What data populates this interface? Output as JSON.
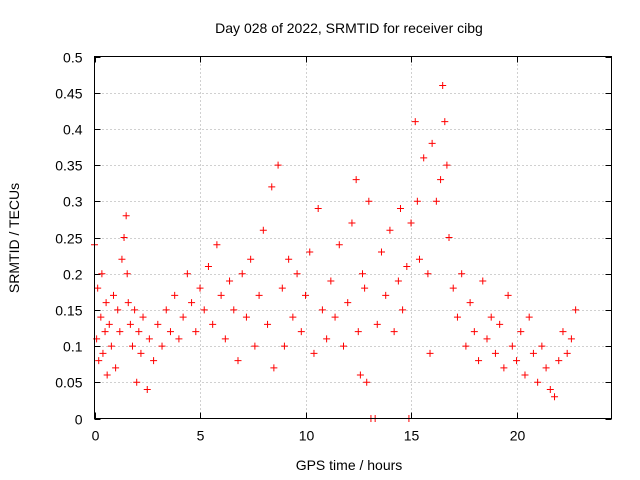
{
  "chart_data": {
    "type": "scatter",
    "title": "Day 028 of 2022, SRMTID for receiver cibg",
    "xlabel": "GPS time / hours",
    "ylabel": "SRMTID / TECUs",
    "xlim": [
      0,
      24.5
    ],
    "ylim": [
      0,
      0.5
    ],
    "xticks": [
      0,
      5,
      10,
      15,
      20
    ],
    "xtick_labels": [
      "0",
      "5",
      "10",
      "15",
      "20"
    ],
    "yticks": [
      0,
      0.05,
      0.1,
      0.15,
      0.2,
      0.25,
      0.3,
      0.35,
      0.4,
      0.45,
      0.5
    ],
    "ytick_labels": [
      "0",
      "0.05",
      "0.1",
      "0.15",
      "0.2",
      "0.25",
      "0.3",
      "0.35",
      "0.4",
      "0.45",
      "0.5"
    ],
    "grid": true,
    "marker": "plus",
    "color": "#ff0000",
    "series": [
      {
        "name": "SRMTID",
        "points": [
          [
            0.0,
            0.24
          ],
          [
            0.1,
            0.11
          ],
          [
            0.15,
            0.18
          ],
          [
            0.2,
            0.08
          ],
          [
            0.3,
            0.14
          ],
          [
            0.35,
            0.2
          ],
          [
            0.4,
            0.09
          ],
          [
            0.5,
            0.12
          ],
          [
            0.55,
            0.16
          ],
          [
            0.6,
            0.06
          ],
          [
            0.7,
            0.13
          ],
          [
            0.8,
            0.1
          ],
          [
            0.9,
            0.17
          ],
          [
            1.0,
            0.07
          ],
          [
            1.1,
            0.15
          ],
          [
            1.2,
            0.12
          ],
          [
            1.3,
            0.22
          ],
          [
            1.4,
            0.25
          ],
          [
            1.5,
            0.28
          ],
          [
            1.55,
            0.2
          ],
          [
            1.6,
            0.16
          ],
          [
            1.7,
            0.13
          ],
          [
            1.8,
            0.1
          ],
          [
            1.9,
            0.15
          ],
          [
            2.0,
            0.05
          ],
          [
            2.1,
            0.12
          ],
          [
            2.2,
            0.09
          ],
          [
            2.3,
            0.14
          ],
          [
            2.5,
            0.04
          ],
          [
            2.6,
            0.11
          ],
          [
            2.8,
            0.08
          ],
          [
            3.0,
            0.13
          ],
          [
            3.2,
            0.1
          ],
          [
            3.4,
            0.15
          ],
          [
            3.6,
            0.12
          ],
          [
            3.8,
            0.17
          ],
          [
            4.0,
            0.11
          ],
          [
            4.2,
            0.14
          ],
          [
            4.4,
            0.2
          ],
          [
            4.6,
            0.16
          ],
          [
            4.8,
            0.12
          ],
          [
            5.0,
            0.18
          ],
          [
            5.2,
            0.15
          ],
          [
            5.4,
            0.21
          ],
          [
            5.6,
            0.13
          ],
          [
            5.8,
            0.24
          ],
          [
            6.0,
            0.17
          ],
          [
            6.2,
            0.11
          ],
          [
            6.4,
            0.19
          ],
          [
            6.6,
            0.15
          ],
          [
            6.8,
            0.08
          ],
          [
            7.0,
            0.2
          ],
          [
            7.2,
            0.14
          ],
          [
            7.4,
            0.22
          ],
          [
            7.6,
            0.1
          ],
          [
            7.8,
            0.17
          ],
          [
            8.0,
            0.26
          ],
          [
            8.2,
            0.13
          ],
          [
            8.4,
            0.32
          ],
          [
            8.5,
            0.07
          ],
          [
            8.7,
            0.35
          ],
          [
            8.9,
            0.18
          ],
          [
            9.0,
            0.1
          ],
          [
            9.2,
            0.22
          ],
          [
            9.4,
            0.14
          ],
          [
            9.6,
            0.2
          ],
          [
            9.8,
            0.12
          ],
          [
            10.0,
            0.17
          ],
          [
            10.2,
            0.23
          ],
          [
            10.4,
            0.09
          ],
          [
            10.6,
            0.29
          ],
          [
            10.8,
            0.15
          ],
          [
            11.0,
            0.11
          ],
          [
            11.2,
            0.19
          ],
          [
            11.4,
            0.14
          ],
          [
            11.6,
            0.24
          ],
          [
            11.8,
            0.1
          ],
          [
            12.0,
            0.16
          ],
          [
            12.2,
            0.27
          ],
          [
            12.4,
            0.33
          ],
          [
            12.5,
            0.12
          ],
          [
            12.6,
            0.06
          ],
          [
            12.7,
            0.2
          ],
          [
            12.8,
            0.18
          ],
          [
            12.9,
            0.05
          ],
          [
            13.0,
            0.3
          ],
          [
            13.1,
            0.0
          ],
          [
            13.3,
            0.0
          ],
          [
            13.4,
            0.13
          ],
          [
            13.6,
            0.23
          ],
          [
            13.8,
            0.17
          ],
          [
            14.0,
            0.26
          ],
          [
            14.2,
            0.12
          ],
          [
            14.4,
            0.19
          ],
          [
            14.5,
            0.29
          ],
          [
            14.6,
            0.15
          ],
          [
            14.8,
            0.21
          ],
          [
            14.9,
            0.0
          ],
          [
            15.0,
            0.27
          ],
          [
            15.2,
            0.41
          ],
          [
            15.3,
            0.3
          ],
          [
            15.4,
            0.22
          ],
          [
            15.6,
            0.36
          ],
          [
            15.8,
            0.2
          ],
          [
            15.9,
            0.09
          ],
          [
            16.0,
            0.38
          ],
          [
            16.2,
            0.3
          ],
          [
            16.4,
            0.33
          ],
          [
            16.5,
            0.46
          ],
          [
            16.6,
            0.41
          ],
          [
            16.7,
            0.35
          ],
          [
            16.8,
            0.25
          ],
          [
            17.0,
            0.18
          ],
          [
            17.2,
            0.14
          ],
          [
            17.4,
            0.2
          ],
          [
            17.6,
            0.1
          ],
          [
            17.8,
            0.16
          ],
          [
            18.0,
            0.12
          ],
          [
            18.2,
            0.08
          ],
          [
            18.4,
            0.19
          ],
          [
            18.6,
            0.11
          ],
          [
            18.8,
            0.14
          ],
          [
            19.0,
            0.09
          ],
          [
            19.2,
            0.13
          ],
          [
            19.4,
            0.07
          ],
          [
            19.6,
            0.17
          ],
          [
            19.8,
            0.1
          ],
          [
            20.0,
            0.08
          ],
          [
            20.2,
            0.12
          ],
          [
            20.4,
            0.06
          ],
          [
            20.6,
            0.14
          ],
          [
            20.8,
            0.09
          ],
          [
            21.0,
            0.05
          ],
          [
            21.2,
            0.1
          ],
          [
            21.4,
            0.07
          ],
          [
            21.6,
            0.04
          ],
          [
            21.8,
            0.03
          ],
          [
            22.0,
            0.08
          ],
          [
            22.2,
            0.12
          ],
          [
            22.4,
            0.09
          ],
          [
            22.6,
            0.11
          ],
          [
            22.8,
            0.15
          ]
        ]
      }
    ]
  }
}
